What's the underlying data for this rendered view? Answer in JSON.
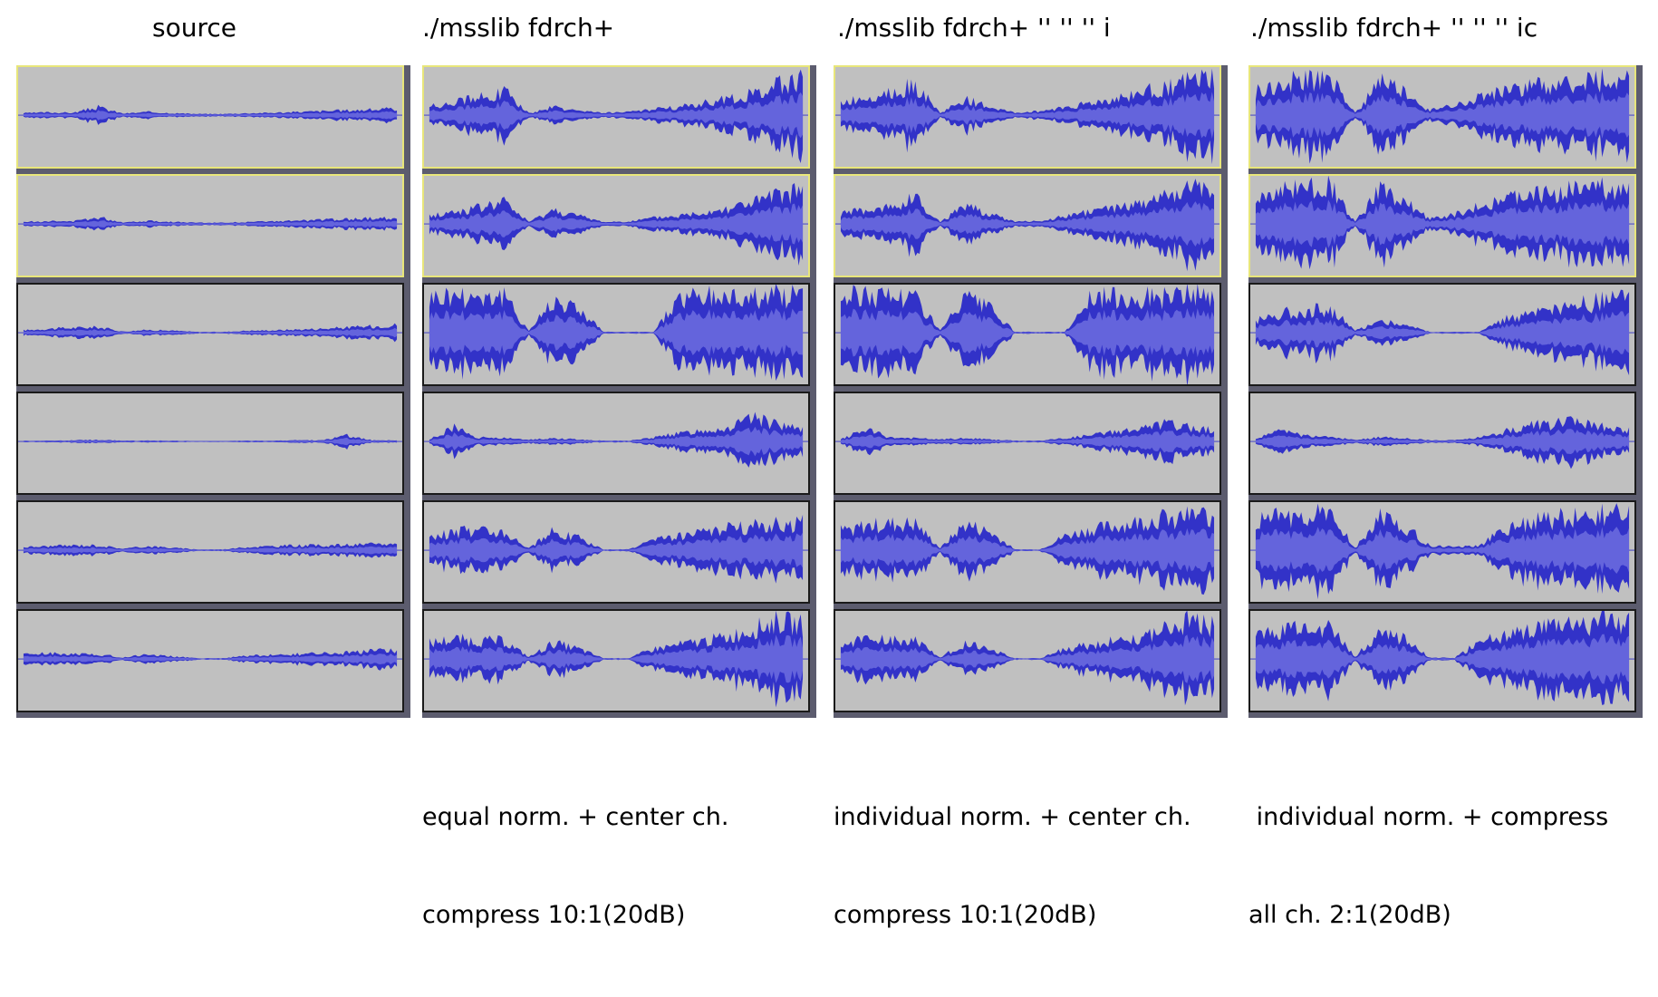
{
  "colors": {
    "waveform_outer": "#3232c8",
    "waveform_inner": "#6464dc",
    "track_bg": "#c0c0c0",
    "selection_border": "#e8e67a",
    "track_border": "#1a1a1a"
  },
  "columns": [
    {
      "title": "source",
      "caption": [
        "",
        ""
      ],
      "selected_tracks": 2,
      "tracks": [
        {
          "amp": [
            0.05,
            0.07,
            0.06,
            0.2,
            0.04,
            0.08,
            0.05,
            0.03,
            0.03,
            0.05,
            0.06,
            0.08,
            0.1,
            0.12,
            0.14,
            0.16
          ]
        },
        {
          "amp": [
            0.05,
            0.07,
            0.06,
            0.17,
            0.04,
            0.08,
            0.05,
            0.03,
            0.03,
            0.05,
            0.06,
            0.08,
            0.1,
            0.12,
            0.14,
            0.16
          ]
        },
        {
          "amp": [
            0.06,
            0.1,
            0.12,
            0.14,
            0.03,
            0.07,
            0.05,
            0.02,
            0.02,
            0.05,
            0.06,
            0.08,
            0.1,
            0.13,
            0.16,
            0.2
          ]
        },
        {
          "amp": [
            0.02,
            0.02,
            0.03,
            0.04,
            0.02,
            0.02,
            0.02,
            0.01,
            0.01,
            0.02,
            0.02,
            0.03,
            0.03,
            0.15,
            0.03,
            0.03
          ]
        },
        {
          "amp": [
            0.08,
            0.1,
            0.12,
            0.12,
            0.04,
            0.1,
            0.06,
            0.02,
            0.02,
            0.08,
            0.1,
            0.12,
            0.12,
            0.13,
            0.15,
            0.16
          ]
        },
        {
          "amp": [
            0.12,
            0.14,
            0.12,
            0.12,
            0.04,
            0.12,
            0.06,
            0.02,
            0.02,
            0.08,
            0.1,
            0.12,
            0.14,
            0.16,
            0.2,
            0.22
          ]
        }
      ]
    },
    {
      "title": "./msslib fdrch+",
      "caption": [
        "equal norm. + center ch.",
        "compress 10:1(20dB)"
      ],
      "selected_tracks": 2,
      "tracks": [
        {
          "amp": [
            0.2,
            0.35,
            0.45,
            0.6,
            0.05,
            0.2,
            0.1,
            0.06,
            0.08,
            0.15,
            0.2,
            0.3,
            0.4,
            0.55,
            0.75,
            0.9
          ]
        },
        {
          "amp": [
            0.2,
            0.3,
            0.4,
            0.55,
            0.05,
            0.35,
            0.2,
            0.05,
            0.06,
            0.15,
            0.2,
            0.3,
            0.4,
            0.55,
            0.7,
            0.85
          ]
        },
        {
          "amp": [
            0.9,
            0.95,
            0.95,
            0.9,
            0.05,
            0.85,
            0.6,
            0.02,
            0.02,
            0.02,
            0.85,
            0.9,
            0.9,
            0.92,
            0.95,
            0.95
          ]
        },
        {
          "amp": [
            0.05,
            0.35,
            0.1,
            0.08,
            0.05,
            0.08,
            0.05,
            0.02,
            0.02,
            0.1,
            0.2,
            0.3,
            0.35,
            0.6,
            0.4,
            0.3
          ]
        },
        {
          "amp": [
            0.3,
            0.45,
            0.5,
            0.5,
            0.05,
            0.5,
            0.3,
            0.02,
            0.02,
            0.25,
            0.35,
            0.45,
            0.55,
            0.6,
            0.65,
            0.7
          ]
        },
        {
          "amp": [
            0.4,
            0.5,
            0.45,
            0.45,
            0.05,
            0.4,
            0.25,
            0.02,
            0.02,
            0.25,
            0.35,
            0.45,
            0.55,
            0.75,
            0.95,
            0.85
          ]
        }
      ]
    },
    {
      "title": "./msslib fdrch+ '' '' '' i",
      "caption": [
        "individual norm. + center ch.",
        "compress 10:1(20dB)"
      ],
      "selected_tracks": 2,
      "tracks": [
        {
          "amp": [
            0.3,
            0.45,
            0.6,
            0.75,
            0.05,
            0.4,
            0.2,
            0.06,
            0.1,
            0.2,
            0.3,
            0.4,
            0.55,
            0.7,
            0.85,
            0.95
          ]
        },
        {
          "amp": [
            0.25,
            0.35,
            0.45,
            0.65,
            0.05,
            0.45,
            0.25,
            0.05,
            0.08,
            0.2,
            0.3,
            0.4,
            0.5,
            0.7,
            0.85,
            0.95
          ]
        },
        {
          "amp": [
            0.9,
            0.95,
            0.95,
            0.9,
            0.05,
            0.85,
            0.6,
            0.02,
            0.02,
            0.02,
            0.85,
            0.9,
            0.9,
            0.92,
            0.95,
            0.95
          ]
        },
        {
          "amp": [
            0.05,
            0.3,
            0.1,
            0.08,
            0.05,
            0.08,
            0.05,
            0.02,
            0.02,
            0.08,
            0.15,
            0.25,
            0.3,
            0.45,
            0.35,
            0.3
          ]
        },
        {
          "amp": [
            0.5,
            0.6,
            0.65,
            0.65,
            0.05,
            0.65,
            0.45,
            0.02,
            0.02,
            0.35,
            0.5,
            0.6,
            0.7,
            0.8,
            0.85,
            0.9
          ]
        },
        {
          "amp": [
            0.4,
            0.5,
            0.45,
            0.45,
            0.05,
            0.4,
            0.25,
            0.02,
            0.02,
            0.25,
            0.35,
            0.45,
            0.55,
            0.75,
            0.95,
            0.85
          ]
        }
      ]
    },
    {
      "title": "./msslib fdrch+ '' '' '' ic",
      "caption": [
        " individual norm. + compress",
        "all ch. 2:1(20dB)"
      ],
      "selected_tracks": 2,
      "tracks": [
        {
          "amp": [
            0.6,
            0.8,
            0.9,
            0.9,
            0.05,
            0.85,
            0.55,
            0.12,
            0.25,
            0.45,
            0.6,
            0.7,
            0.8,
            0.85,
            0.9,
            0.95
          ]
        },
        {
          "amp": [
            0.6,
            0.8,
            0.9,
            0.95,
            0.05,
            0.85,
            0.55,
            0.12,
            0.25,
            0.45,
            0.6,
            0.7,
            0.8,
            0.85,
            0.9,
            0.95
          ]
        },
        {
          "amp": [
            0.3,
            0.5,
            0.55,
            0.6,
            0.05,
            0.3,
            0.2,
            0.02,
            0.02,
            0.02,
            0.35,
            0.45,
            0.55,
            0.7,
            0.8,
            0.9
          ]
        },
        {
          "amp": [
            0.05,
            0.3,
            0.15,
            0.1,
            0.05,
            0.1,
            0.08,
            0.03,
            0.03,
            0.1,
            0.25,
            0.4,
            0.45,
            0.5,
            0.35,
            0.3
          ]
        },
        {
          "amp": [
            0.7,
            0.85,
            0.9,
            0.9,
            0.05,
            0.85,
            0.6,
            0.1,
            0.1,
            0.1,
            0.55,
            0.7,
            0.8,
            0.85,
            0.9,
            0.9
          ]
        },
        {
          "amp": [
            0.6,
            0.75,
            0.8,
            0.75,
            0.05,
            0.7,
            0.5,
            0.03,
            0.03,
            0.45,
            0.6,
            0.7,
            0.8,
            0.85,
            0.95,
            0.9
          ]
        }
      ]
    }
  ]
}
